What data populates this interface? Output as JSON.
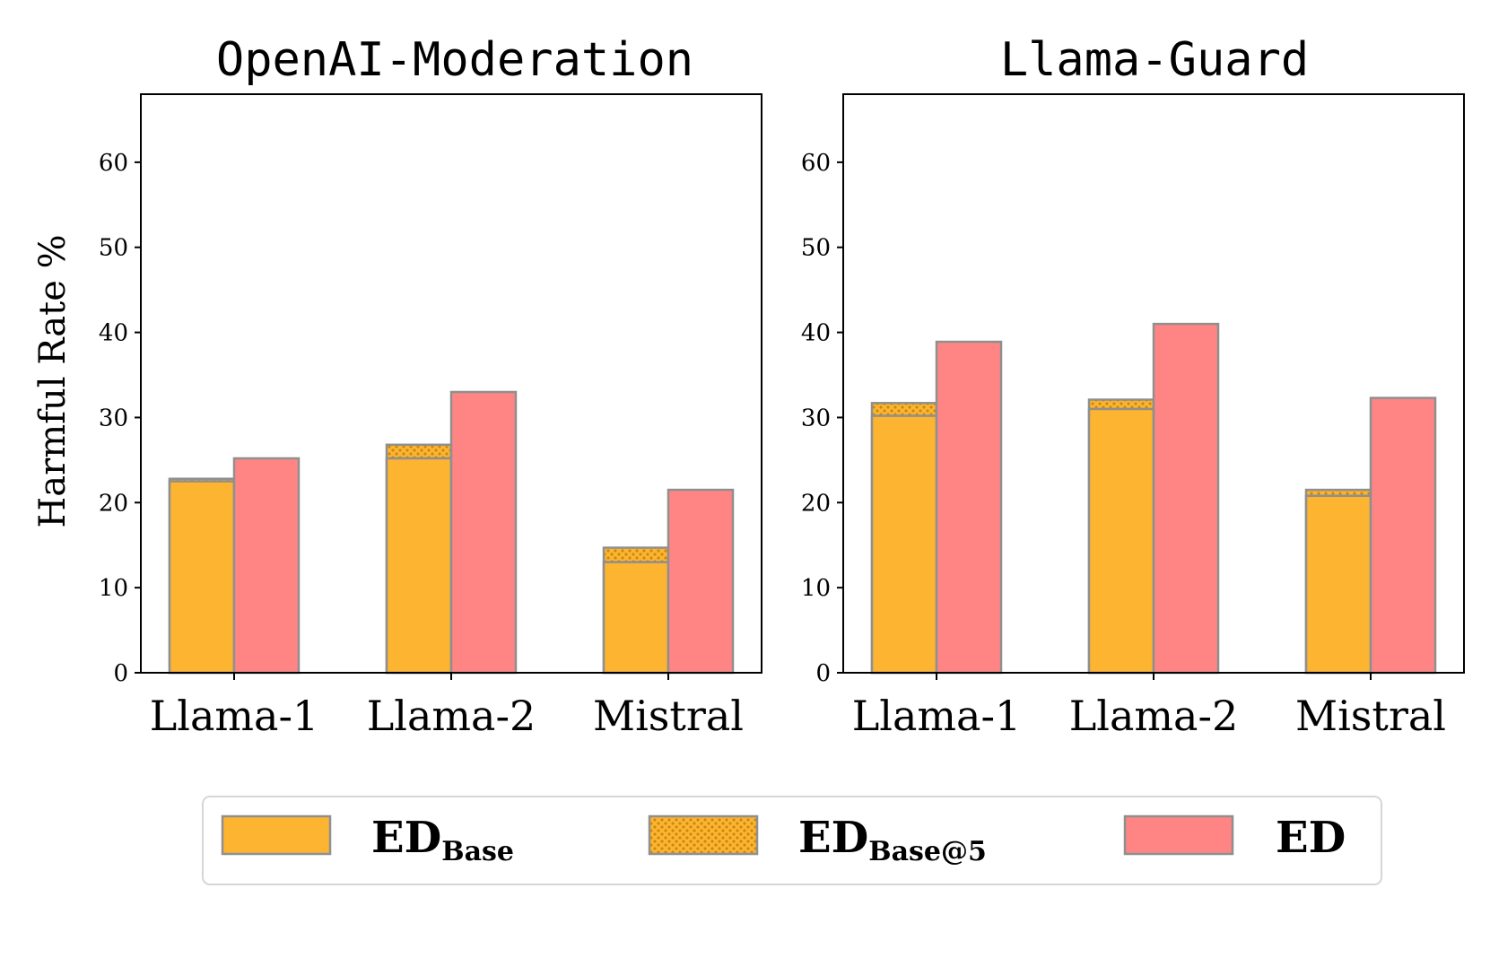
{
  "colors": {
    "base": "#FDB431",
    "base5_dots": "#c98a10",
    "ed": "#FF8585",
    "edge": "#8f8f8f"
  },
  "ylabel": "Harmful Rate %",
  "legend": [
    {
      "key": "base",
      "main": "ED",
      "sub": "Base"
    },
    {
      "key": "base5",
      "main": "ED",
      "sub": "Base@5"
    },
    {
      "key": "ed",
      "main": "ED",
      "sub": ""
    }
  ],
  "chart_data": [
    {
      "type": "bar",
      "title": "OpenAI-Moderation",
      "categories": [
        "Llama-1",
        "Llama-2",
        "Mistral"
      ],
      "ylim": [
        0,
        68
      ],
      "yticks": [
        "0",
        "10",
        "20",
        "30",
        "40",
        "50",
        "60"
      ],
      "ylabel": "Harmful Rate %",
      "series": [
        {
          "name": "ED_Base",
          "values": [
            22.5,
            25.2,
            13.0
          ]
        },
        {
          "name": "ED_Base@5",
          "values": [
            22.8,
            26.8,
            14.7
          ]
        },
        {
          "name": "ED",
          "values": [
            25.2,
            33.0,
            21.5
          ]
        }
      ]
    },
    {
      "type": "bar",
      "title": "Llama-Guard",
      "categories": [
        "Llama-1",
        "Llama-2",
        "Mistral"
      ],
      "ylim": [
        0,
        68
      ],
      "yticks": [
        "0",
        "10",
        "20",
        "30",
        "40",
        "50",
        "60"
      ],
      "ylabel": "",
      "series": [
        {
          "name": "ED_Base",
          "values": [
            30.2,
            31.0,
            20.8
          ]
        },
        {
          "name": "ED_Base@5",
          "values": [
            31.7,
            32.1,
            21.5
          ]
        },
        {
          "name": "ED",
          "values": [
            38.9,
            41.0,
            32.3
          ]
        }
      ]
    }
  ]
}
